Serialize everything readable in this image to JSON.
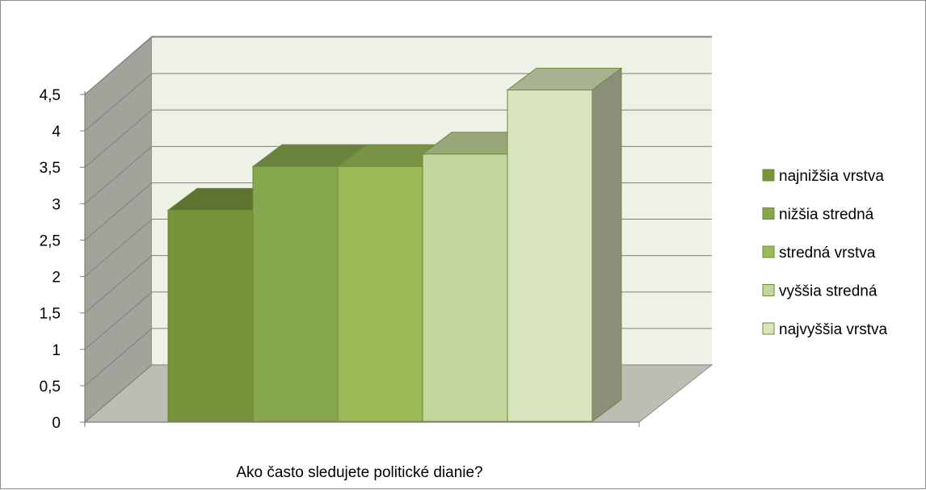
{
  "chart_data": {
    "type": "bar",
    "title": "",
    "xlabel": "Ako často sledujete politické dianie?",
    "ylabel": "",
    "categories": [
      "Ako často sledujete politické dianie?"
    ],
    "series": [
      {
        "name": "najnižšia vrstva",
        "values": [
          2.9
        ],
        "color": "#77933c"
      },
      {
        "name": "nižšia stredná",
        "values": [
          3.5
        ],
        "color": "#87a74e"
      },
      {
        "name": "stredná vrstva",
        "values": [
          3.5
        ],
        "color": "#9bbb59"
      },
      {
        "name": "vyššia stredná",
        "values": [
          3.67
        ],
        "color": "#c3d69b"
      },
      {
        "name": "najvyššia vrstva",
        "values": [
          4.55
        ],
        "color": "#d7e4bd"
      }
    ],
    "ylim": [
      0,
      4.5
    ],
    "yticks": [
      "0",
      "0,5",
      "1",
      "1,5",
      "2",
      "2,5",
      "3",
      "3,5",
      "4",
      "4,5"
    ],
    "grid": true,
    "legend": "right",
    "style": "3d-clustered-column"
  }
}
